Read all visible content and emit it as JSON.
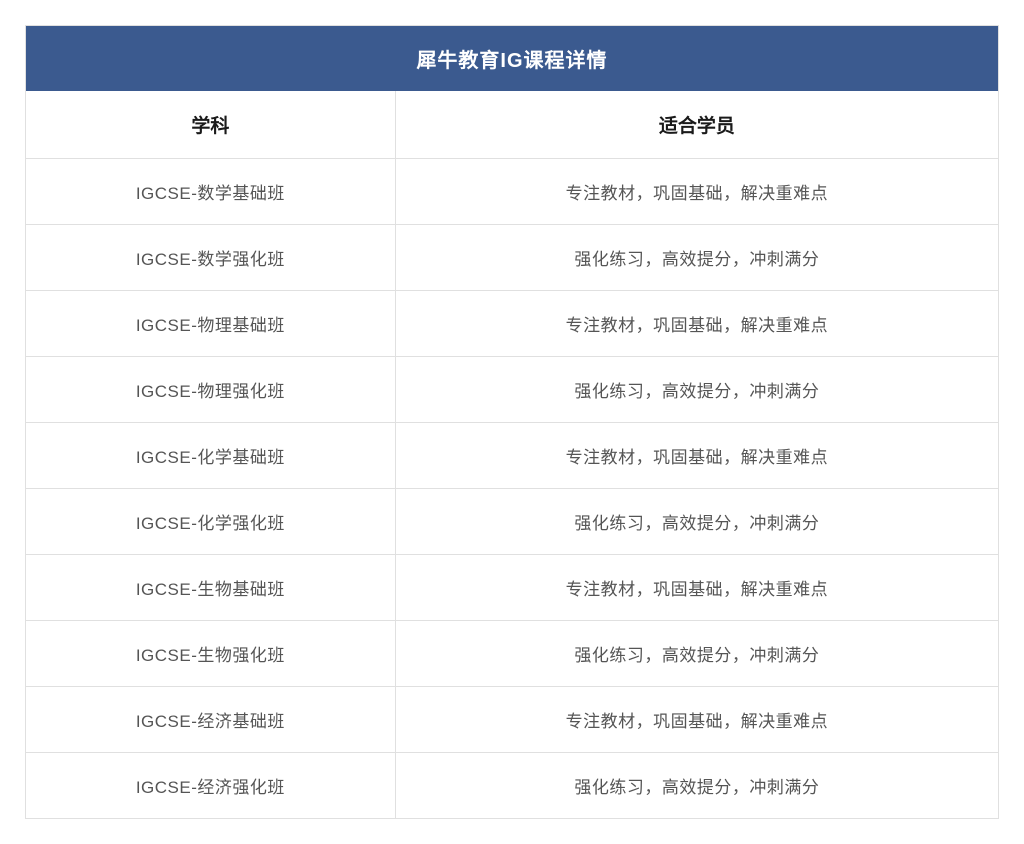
{
  "table": {
    "title": "犀牛教育IG课程详情",
    "title_bg_color": "#3b5a8f",
    "title_text_color": "#ffffff",
    "title_fontsize": 20,
    "border_color": "#e0e0e0",
    "background_color": "#ffffff",
    "columns": [
      {
        "label": "学科",
        "width_pct": 38
      },
      {
        "label": "适合学员",
        "width_pct": 62
      }
    ],
    "header_fontsize": 19,
    "header_color": "#1a1a1a",
    "cell_fontsize": 17,
    "cell_color": "#555555",
    "rows": [
      {
        "subject": "IGCSE-数学基础班",
        "desc": "专注教材，巩固基础，解决重难点"
      },
      {
        "subject": "IGCSE-数学强化班",
        "desc": "强化练习，高效提分，冲刺满分"
      },
      {
        "subject": "IGCSE-物理基础班",
        "desc": "专注教材，巩固基础，解决重难点"
      },
      {
        "subject": "IGCSE-物理强化班",
        "desc": "强化练习，高效提分，冲刺满分"
      },
      {
        "subject": "IGCSE-化学基础班",
        "desc": "专注教材，巩固基础，解决重难点"
      },
      {
        "subject": "IGCSE-化学强化班",
        "desc": "强化练习，高效提分，冲刺满分"
      },
      {
        "subject": "IGCSE-生物基础班",
        "desc": "专注教材，巩固基础，解决重难点"
      },
      {
        "subject": "IGCSE-生物强化班",
        "desc": "强化练习，高效提分，冲刺满分"
      },
      {
        "subject": "IGCSE-经济基础班",
        "desc": "专注教材，巩固基础，解决重难点"
      },
      {
        "subject": "IGCSE-经济强化班",
        "desc": "强化练习，高效提分，冲刺满分"
      }
    ]
  }
}
